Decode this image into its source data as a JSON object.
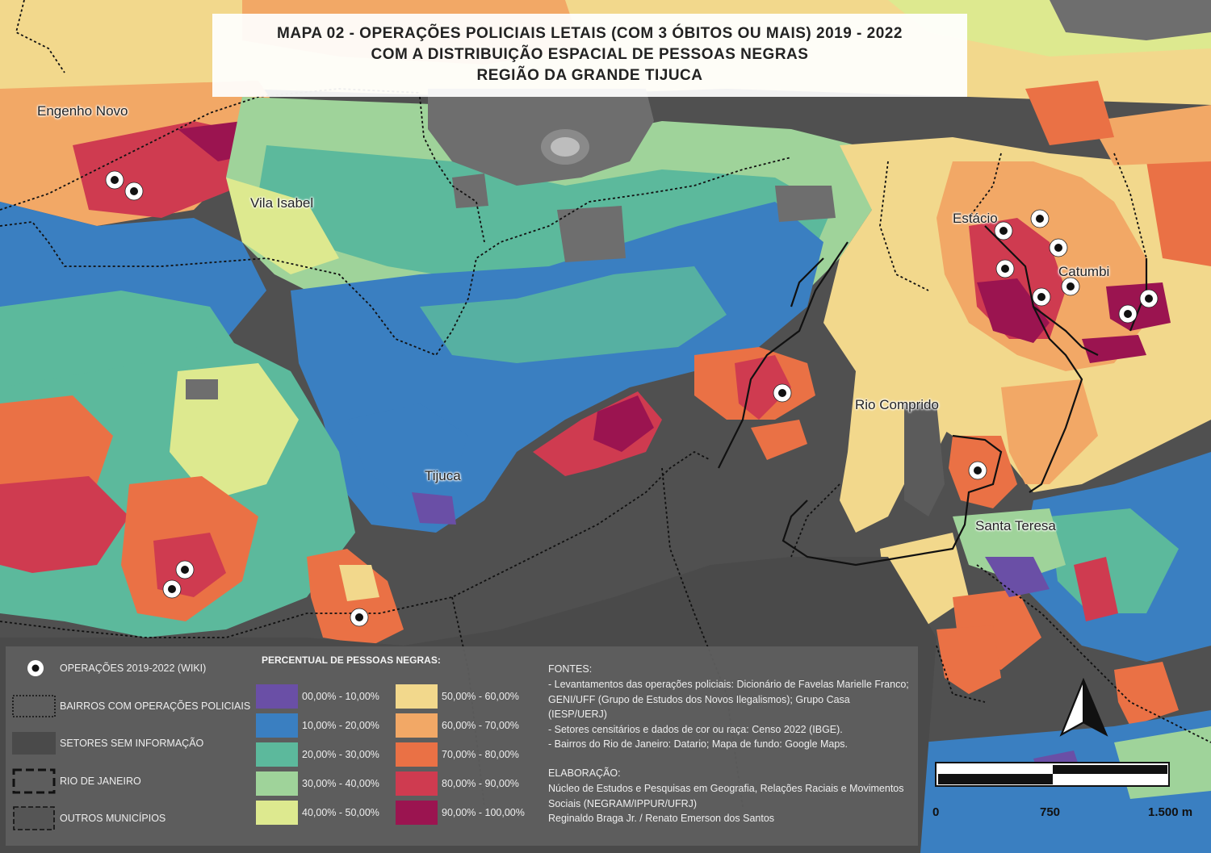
{
  "title": {
    "line1": "MAPA 02 - OPERAÇÕES POLICIAIS LETAIS (COM 3 ÓBITOS OU MAIS) 2019 - 2022",
    "line2": "COM A DISTRIBUIÇÃO ESPACIAL DE PESSOAS NEGRAS",
    "line3": "REGIÃO DA GRANDE TIJUCA"
  },
  "places": {
    "engenho_novo": "Engenho Novo",
    "vila_isabel": "Vila Isabel",
    "estacio": "Estácio",
    "catumbi": "Catumbi",
    "rio_comprido": "Rio Comprido",
    "tijuca": "Tijuca",
    "santa_teresa": "Santa Teresa"
  },
  "legend": {
    "operations": "OPERAÇÕES 2019-2022 (WIKI)",
    "bairros": "BAIRROS COM OPERAÇÕES POLICIAIS",
    "setores": "SETORES SEM INFORMAÇÃO",
    "rio": "RIO DE JANEIRO",
    "outros": "OUTROS  MUNICÍPIOS",
    "pct_heading": "PERCENTUAL DE PESSOAS NEGRAS:",
    "classes": [
      {
        "label": "00,00% - 10,00%",
        "color": "#6a4fa6"
      },
      {
        "label": "10,00% - 20,00%",
        "color": "#3a7fc1"
      },
      {
        "label": "20,00% - 30,00%",
        "color": "#5cb99c"
      },
      {
        "label": "30,00% - 40,00%",
        "color": "#9fd39a"
      },
      {
        "label": "40,00% - 50,00%",
        "color": "#dde98f"
      },
      {
        "label": "50,00% - 60,00%",
        "color": "#f2d88c"
      },
      {
        "label": "60,00% - 70,00%",
        "color": "#f2a866"
      },
      {
        "label": "70,00% - 80,00%",
        "color": "#ea7145"
      },
      {
        "label": "80,00% - 90,00%",
        "color": "#cf3b50"
      },
      {
        "label": "90,00% - 100,00%",
        "color": "#9b1450"
      }
    ]
  },
  "sources": {
    "heading": "FONTES:",
    "line1": "- Levantamentos das operações policiais: Dicionário de Favelas Marielle Franco; GENI/UFF (Grupo de Estudos dos Novos Ilegalismos); Grupo Casa (IESP/UERJ)",
    "line2": "- Setores censitários e dados de cor ou raça: Censo 2022 (IBGE).",
    "line3": "- Bairros do Rio de Janeiro: Datario; Mapa de fundo: Google Maps.",
    "elab_heading": "ELABORAÇÃO:",
    "elab1": "Núcleo de Estudos e Pesquisas em Geografia, Relações Raciais e Movimentos Sociais (NEGRAM/IPPUR/UFRJ)",
    "elab2": "Reginaldo Braga Jr. / Renato Emerson dos Santos"
  },
  "scale": {
    "s0": "0",
    "s1": "750",
    "s2": "1.500 m"
  },
  "colors": {
    "c0": "#6a4fa6",
    "c1": "#3a7fc1",
    "c2": "#5cb99c",
    "c3": "#9fd39a",
    "c4": "#dde98f",
    "c5": "#f2d88c",
    "c6": "#f2a866",
    "c7": "#ea7145",
    "c8": "#cf3b50",
    "c9": "#9b1450",
    "no_info": "#5b5b5b"
  }
}
